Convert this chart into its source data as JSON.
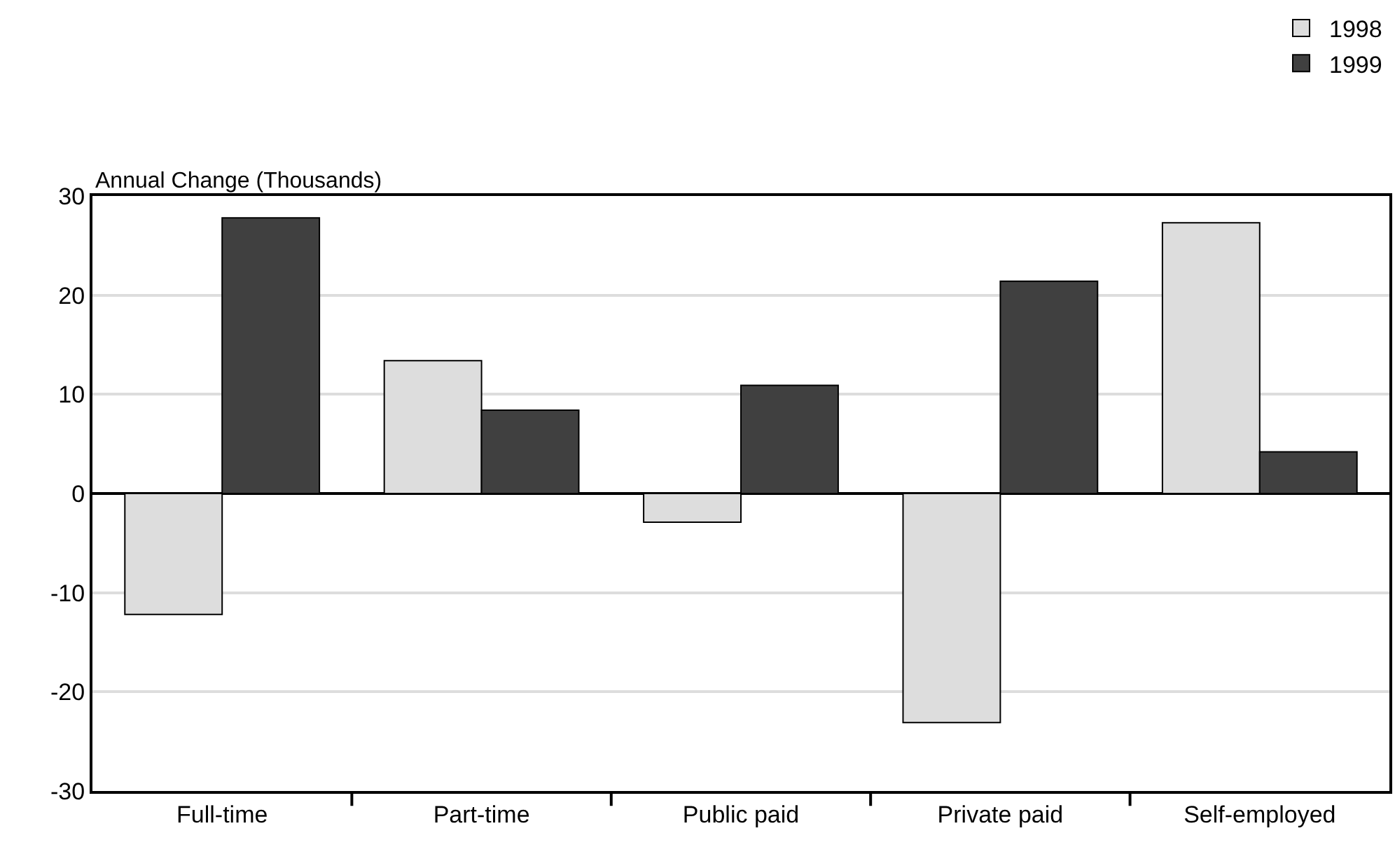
{
  "chart_data": {
    "type": "bar",
    "ylabel": "Annual Change (Thousands)",
    "categories": [
      "Full-time",
      "Part-time",
      "Public paid",
      "Private paid",
      "Self-employed"
    ],
    "series": [
      {
        "name": "1998",
        "color": "#dddddd",
        "values": [
          -12.2,
          13.4,
          -2.9,
          -23.1,
          27.3
        ]
      },
      {
        "name": "1999",
        "color": "#404040",
        "values": [
          27.8,
          8.4,
          10.9,
          21.4,
          4.2
        ]
      }
    ],
    "ylim": [
      -30,
      30
    ],
    "yticks": [
      -30,
      -20,
      -10,
      0,
      10,
      20,
      30
    ],
    "grid": "y",
    "legend": "top right"
  }
}
